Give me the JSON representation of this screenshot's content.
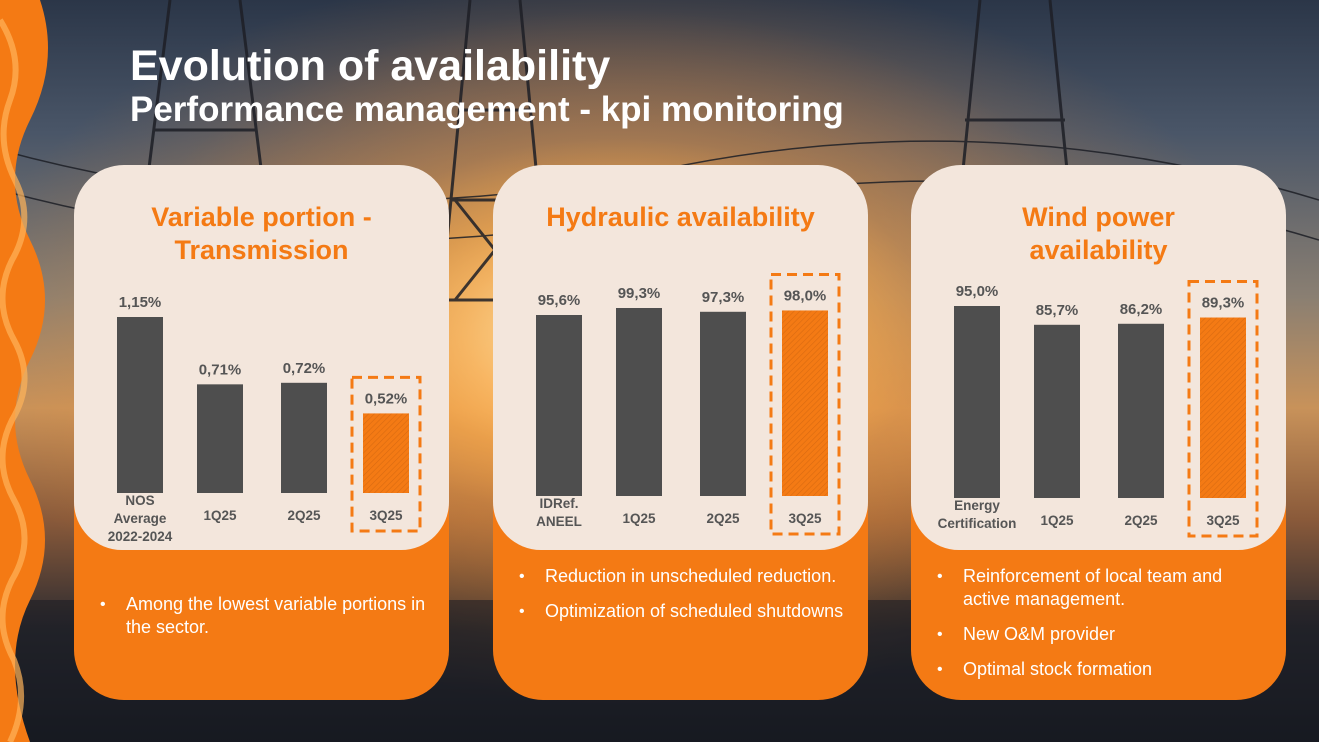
{
  "slide": {
    "title": "Evolution of availability",
    "subtitle": "Performance management - kpi monitoring"
  },
  "colors": {
    "accent": "#f47a14",
    "bar": "#4e4e4e",
    "card_bg": "#f3e6dc",
    "label": "#555555"
  },
  "chart_data": [
    {
      "type": "bar",
      "title": "Variable portion - Transmission",
      "categories": [
        "NOS Average 2022-2024",
        "1Q25",
        "2Q25",
        "3Q25"
      ],
      "category_lines": [
        [
          "NOS",
          "Average",
          "2022-2024"
        ],
        [
          "1Q25"
        ],
        [
          "2Q25"
        ],
        [
          "3Q25"
        ]
      ],
      "values": [
        1.15,
        0.71,
        0.72,
        0.52
      ],
      "value_labels": [
        "1,15%",
        "0,71%",
        "0,72%",
        "0,52%"
      ],
      "highlight_index": 3,
      "unit": "%"
    },
    {
      "type": "bar",
      "title": "Hydraulic availability",
      "categories": [
        "IDRef. ANEEL",
        "1Q25",
        "2Q25",
        "3Q25"
      ],
      "category_lines": [
        [
          "IDRef.",
          "ANEEL"
        ],
        [
          "1Q25"
        ],
        [
          "2Q25"
        ],
        [
          "3Q25"
        ]
      ],
      "values": [
        95.6,
        99.3,
        97.3,
        98.0
      ],
      "value_labels": [
        "95,6%",
        "99,3%",
        "97,3%",
        "98,0%"
      ],
      "highlight_index": 3,
      "unit": "%"
    },
    {
      "type": "bar",
      "title": "Wind power availability",
      "categories": [
        "Energy Certification",
        "1Q25",
        "2Q25",
        "3Q25"
      ],
      "category_lines": [
        [
          "Energy",
          "Certification"
        ],
        [
          "1Q25"
        ],
        [
          "2Q25"
        ],
        [
          "3Q25"
        ]
      ],
      "values": [
        95.0,
        85.7,
        86.2,
        89.3
      ],
      "value_labels": [
        "95,0%",
        "85,7%",
        "86,2%",
        "89,3%"
      ],
      "highlight_index": 3,
      "unit": "%"
    }
  ],
  "cards": [
    {
      "title_lines": [
        "Variable portion -",
        "Transmission"
      ],
      "bullets": [
        "Among the lowest variable portions in the sector."
      ]
    },
    {
      "title_lines": [
        "Hydraulic availability"
      ],
      "bullets": [
        "Reduction in unscheduled reduction.",
        "Optimization of scheduled shutdowns"
      ]
    },
    {
      "title_lines": [
        "Wind power",
        "availability"
      ],
      "bullets": [
        "Reinforcement of local team and active management.",
        "New O&M provider",
        "Optimal stock formation"
      ]
    }
  ]
}
